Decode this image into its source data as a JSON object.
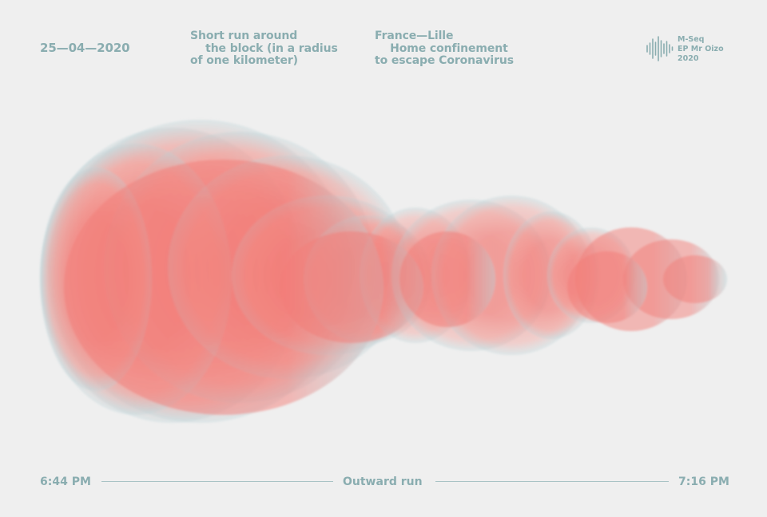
{
  "header": {
    "date": "25—04—2020",
    "description": "Short run around\n    the block (in a radius\nof one kilometer)",
    "context": "France—Lille\n    Home confinement\nto escape Coronavirus"
  },
  "brand": {
    "icon": "soundwave-icon",
    "text": "M-Seq\nEP Mr Oizo\n2020"
  },
  "footer": {
    "start_time": "6:44 PM",
    "caption": "Outward run",
    "end_time": "7:16 PM"
  },
  "colors": {
    "background": "#efefef",
    "text": "#8aadb0",
    "shape_core": "#f27d78",
    "shape_edge": "#b7d3d8"
  }
}
